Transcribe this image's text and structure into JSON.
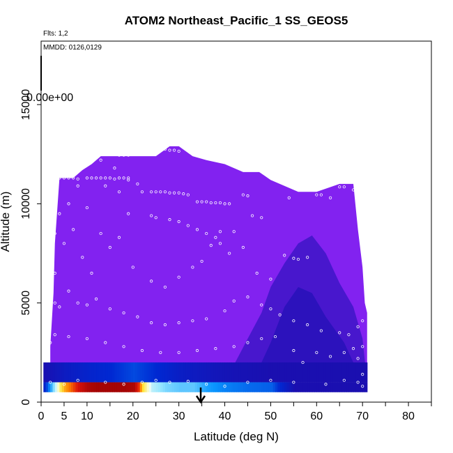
{
  "chart_data": {
    "type": "heatmap",
    "title": "ATOM2 Northeast_Pacific_1 SS_GEOS5",
    "annotations": {
      "flights": "Flts: 1,2",
      "dates": "MMDD: 0126,0129",
      "colorbar_label": "0.00e+00"
    },
    "xlabel": "Latitude (deg N)",
    "ylabel": "Altitude (m)",
    "xlim": [
      0,
      85
    ],
    "ylim": [
      0,
      18200
    ],
    "x_ticks": [
      0,
      5,
      10,
      20,
      30,
      40,
      50,
      60,
      70,
      80
    ],
    "y_ticks": [
      0,
      5000,
      10000,
      15000
    ],
    "colors": {
      "background_field": "#8222f0",
      "dark_blue": "#1a0fb0",
      "marker": "#ffffff"
    },
    "envelope_lat": [
      2,
      2.7,
      3,
      4,
      5,
      6,
      7,
      9,
      11,
      13,
      16,
      20,
      25,
      28,
      30,
      33,
      36,
      40,
      44,
      47.5,
      50,
      53,
      56,
      60,
      65,
      68,
      69,
      70,
      70.5,
      71
    ],
    "envelope_alt": [
      2800,
      5500,
      8000,
      11300,
      11300,
      11300,
      11300,
      11700,
      12000,
      12400,
      12400,
      12400,
      12400,
      12900,
      12900,
      12400,
      12200,
      12000,
      11600,
      11600,
      11200,
      10900,
      10600,
      10600,
      11000,
      11000,
      8700,
      6800,
      5000,
      4500
    ],
    "surface_band": {
      "alt_range": [
        500,
        1000
      ],
      "lat": [
        0,
        2,
        5,
        8,
        10,
        12,
        15,
        18,
        20,
        21,
        22,
        24,
        27,
        30,
        33,
        36,
        40,
        45,
        50,
        55,
        60,
        65,
        70
      ],
      "value_index": [
        0.15,
        0.35,
        0.7,
        0.9,
        0.98,
        1.0,
        1.0,
        1.0,
        0.98,
        0.85,
        0.6,
        0.45,
        0.4,
        0.38,
        0.38,
        0.33,
        0.3,
        0.28,
        0.27,
        0.12,
        0.12,
        0.12,
        0.12
      ]
    },
    "lower_band": {
      "alt_range": [
        1000,
        2000
      ],
      "lat": [
        0,
        5,
        10,
        15,
        20,
        25,
        30,
        35,
        40,
        50,
        60,
        70
      ],
      "value_index": [
        0.12,
        0.17,
        0.2,
        0.22,
        0.25,
        0.22,
        0.18,
        0.16,
        0.14,
        0.12,
        0.12,
        0.12
      ]
    },
    "obs_points": [
      [
        3,
        11300
      ],
      [
        4,
        11300
      ],
      [
        5,
        11300
      ],
      [
        6,
        11300
      ],
      [
        7,
        11300
      ],
      [
        8,
        11250
      ],
      [
        10,
        11300
      ],
      [
        11,
        11300
      ],
      [
        12,
        11300
      ],
      [
        13,
        11300
      ],
      [
        14,
        11300
      ],
      [
        15,
        11300
      ],
      [
        16,
        11250
      ],
      [
        17,
        11300
      ],
      [
        18,
        11300
      ],
      [
        19,
        11200
      ],
      [
        11,
        12100
      ],
      [
        13,
        12200
      ],
      [
        17,
        12450
      ],
      [
        18,
        12450
      ],
      [
        19,
        12450
      ],
      [
        23,
        12700
      ],
      [
        27,
        12750
      ],
      [
        28,
        12700
      ],
      [
        29,
        12700
      ],
      [
        30,
        12650
      ],
      [
        33,
        12600
      ],
      [
        16,
        11800
      ],
      [
        19,
        11300
      ],
      [
        21,
        11000
      ],
      [
        22,
        10600
      ],
      [
        24,
        10600
      ],
      [
        25,
        10600
      ],
      [
        26,
        10600
      ],
      [
        27,
        10600
      ],
      [
        28,
        10550
      ],
      [
        29,
        10550
      ],
      [
        30,
        10550
      ],
      [
        31,
        10500
      ],
      [
        32,
        10450
      ],
      [
        34,
        10100
      ],
      [
        35,
        10100
      ],
      [
        36,
        10100
      ],
      [
        37,
        10050
      ],
      [
        38,
        10050
      ],
      [
        39,
        10050
      ],
      [
        40,
        10000
      ],
      [
        41,
        10000
      ],
      [
        44,
        10450
      ],
      [
        45,
        10400
      ],
      [
        54,
        10300
      ],
      [
        60,
        10450
      ],
      [
        61,
        10450
      ],
      [
        63,
        10300
      ],
      [
        65,
        10850
      ],
      [
        66,
        10850
      ],
      [
        68,
        10700
      ],
      [
        69,
        10900
      ],
      [
        2,
        7800
      ],
      [
        3,
        8500
      ],
      [
        4,
        9500
      ],
      [
        6,
        10000
      ],
      [
        8,
        10900
      ],
      [
        10,
        9800
      ],
      [
        14,
        10900
      ],
      [
        17,
        10600
      ],
      [
        19,
        9500
      ],
      [
        24,
        9400
      ],
      [
        25,
        9300
      ],
      [
        28,
        9200
      ],
      [
        30,
        9100
      ],
      [
        32,
        8900
      ],
      [
        34,
        8700
      ],
      [
        36,
        8500
      ],
      [
        38,
        8300
      ],
      [
        39,
        8600
      ],
      [
        42,
        8600
      ],
      [
        46,
        9400
      ],
      [
        48,
        9300
      ],
      [
        2,
        6000
      ],
      [
        3,
        6500
      ],
      [
        5,
        8000
      ],
      [
        7,
        8700
      ],
      [
        9,
        7300
      ],
      [
        11,
        6500
      ],
      [
        13,
        8500
      ],
      [
        15,
        7800
      ],
      [
        17,
        8300
      ],
      [
        20,
        6800
      ],
      [
        24,
        6100
      ],
      [
        27,
        5800
      ],
      [
        30,
        6300
      ],
      [
        33,
        6800
      ],
      [
        35,
        7100
      ],
      [
        37,
        7900
      ],
      [
        39,
        8000
      ],
      [
        41,
        7500
      ],
      [
        44,
        7800
      ],
      [
        47,
        6500
      ],
      [
        50,
        6200
      ],
      [
        53,
        7400
      ],
      [
        55,
        7250
      ],
      [
        56,
        7200
      ],
      [
        58,
        7300
      ],
      [
        2,
        4300
      ],
      [
        3,
        5000
      ],
      [
        4,
        4800
      ],
      [
        6,
        5600
      ],
      [
        8,
        5000
      ],
      [
        10,
        4900
      ],
      [
        12,
        5200
      ],
      [
        15,
        4700
      ],
      [
        18,
        4500
      ],
      [
        21,
        4300
      ],
      [
        24,
        4000
      ],
      [
        27,
        3900
      ],
      [
        30,
        4000
      ],
      [
        33,
        4100
      ],
      [
        36,
        4200
      ],
      [
        40,
        4600
      ],
      [
        42,
        5100
      ],
      [
        45,
        5300
      ],
      [
        48,
        4900
      ],
      [
        50,
        4700
      ],
      [
        52,
        4400
      ],
      [
        55,
        4100
      ],
      [
        58,
        3900
      ],
      [
        61,
        3600
      ],
      [
        65,
        3500
      ],
      [
        67,
        3400
      ],
      [
        69,
        3800
      ],
      [
        70,
        4100
      ],
      [
        2,
        3000
      ],
      [
        3,
        3400
      ],
      [
        6,
        3300
      ],
      [
        10,
        3200
      ],
      [
        14,
        3000
      ],
      [
        18,
        2800
      ],
      [
        22,
        2600
      ],
      [
        26,
        2500
      ],
      [
        30,
        2500
      ],
      [
        34,
        2600
      ],
      [
        38,
        2700
      ],
      [
        42,
        2800
      ],
      [
        45,
        3000
      ],
      [
        48,
        3200
      ],
      [
        51,
        3300
      ],
      [
        55,
        2600
      ],
      [
        57,
        2000
      ],
      [
        60,
        2500
      ],
      [
        63,
        2300
      ],
      [
        66,
        2500
      ],
      [
        68,
        2700
      ],
      [
        70,
        2800
      ],
      [
        2,
        1000
      ],
      [
        5,
        900
      ],
      [
        8,
        1100
      ],
      [
        14,
        1000
      ],
      [
        18,
        900
      ],
      [
        22,
        1000
      ],
      [
        25,
        1100
      ],
      [
        28,
        1000
      ],
      [
        32,
        1050
      ],
      [
        36,
        900
      ],
      [
        40,
        800
      ],
      [
        45,
        1000
      ],
      [
        50,
        1100
      ],
      [
        55,
        1000
      ],
      [
        62,
        900
      ],
      [
        66,
        1100
      ],
      [
        69,
        1000
      ],
      [
        70,
        800
      ],
      [
        70,
        1400
      ],
      [
        69,
        2200
      ]
    ]
  }
}
